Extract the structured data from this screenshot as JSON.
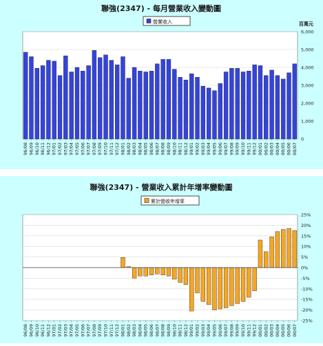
{
  "chart_data": [
    {
      "type": "bar",
      "title": "聯強(2347) - 每月營業收入變動圖",
      "unit_label": "百萬元",
      "legend": "營業收入",
      "legend_position": "top",
      "bar_color": "#3344dd",
      "y_axis_side": "right",
      "ylim": [
        0,
        6000
      ],
      "yticks": [
        0,
        1000,
        2000,
        3000,
        4000,
        5000,
        6000
      ],
      "ytick_labels": [
        "0",
        "1,000",
        "2,000",
        "3,000",
        "4,000",
        "5,000",
        "6,000"
      ],
      "categories": [
        "96/08",
        "96/09",
        "96/10",
        "96/11",
        "96/12",
        "97/01",
        "97/02",
        "97/03",
        "97/04",
        "97/05",
        "97/06",
        "97/07",
        "97/08",
        "97/09",
        "97/10",
        "97/11",
        "97/12",
        "98/01",
        "98/02",
        "98/03",
        "98/04",
        "98/05",
        "98/06",
        "98/07",
        "98/08",
        "98/09",
        "98/10",
        "98/11",
        "98/12",
        "99/01",
        "99/02",
        "99/03",
        "99/04",
        "99/05",
        "99/06",
        "99/07",
        "99/08",
        "99/09",
        "99/10",
        "99/11",
        "99/12",
        "00/01",
        "00/02",
        "00/03",
        "00/04",
        "00/05",
        "00/06",
        "00/07"
      ],
      "xtick_labels": [
        "96/08",
        "96/09",
        "96/10",
        "96/11",
        "96/12",
        "97/01",
        "97/02",
        "97/03",
        "97/04",
        "97/05",
        "97/06",
        "97/07",
        "97/08",
        "97/09",
        "97/10",
        "97/11",
        "97/12",
        "98/01",
        "98/02",
        "98/03",
        "98/04",
        "98/05",
        "98/06",
        "98/07",
        "98/08",
        "98/09",
        "98/10",
        "98/11",
        "98/12",
        "99/01",
        "99/02",
        "99/03",
        "99/04",
        "99/05",
        "99/06",
        "99/07",
        "99/08",
        "99/09",
        "99/10",
        "99/11",
        "99/12",
        "00/01",
        "00/02",
        "00/03",
        "00/04",
        "00/05",
        "00/06",
        "00/07"
      ],
      "values": [
        4850,
        4600,
        3950,
        4100,
        4400,
        4350,
        3550,
        4650,
        3750,
        4000,
        3800,
        4100,
        4950,
        4550,
        4700,
        4400,
        4150,
        4600,
        3400,
        4000,
        3800,
        3750,
        3800,
        4200,
        4450,
        4450,
        3900,
        3450,
        3300,
        3650,
        3450,
        2950,
        2850,
        2700,
        3100,
        3750,
        3950,
        3950,
        3750,
        3800,
        4150,
        4100,
        3550,
        3850,
        3550,
        3350,
        3700,
        4200
      ]
    },
    {
      "type": "bar",
      "title": "聯強(2347) - 營業收入累計年增率變動圖",
      "legend": "累計營收年增率",
      "legend_position": "top",
      "bar_color": "#f5a623",
      "y_axis_side": "right",
      "ylim": [
        -25,
        25
      ],
      "yticks": [
        -25,
        -20,
        -15,
        -10,
        -5,
        0,
        5,
        10,
        15,
        20,
        25
      ],
      "ytick_labels": [
        "-25%",
        "-20%",
        "-15%",
        "-10%",
        "-5%",
        "0%",
        "5%",
        "10%",
        "15%",
        "20%",
        "25%"
      ],
      "categories": [
        "96/08",
        "96/09",
        "96/10",
        "96/11",
        "96/12",
        "97/01",
        "97/02",
        "97/03",
        "97/04",
        "97/05",
        "97/06",
        "97/07",
        "97/08",
        "97/09",
        "97/10",
        "97/11",
        "97/12",
        "98/01",
        "98/02",
        "98/03",
        "98/04",
        "98/05",
        "98/06",
        "98/07",
        "98/08",
        "98/09",
        "98/10",
        "98/11",
        "98/12",
        "99/01",
        "99/02",
        "99/03",
        "99/04",
        "99/05",
        "99/06",
        "99/07",
        "99/08",
        "99/09",
        "99/10",
        "99/11",
        "99/12",
        "00/01",
        "00/02",
        "00/03",
        "00/04",
        "00/05",
        "00/06",
        "00/07"
      ],
      "xtick_labels": [
        "96/08",
        "96/09",
        "96/10",
        "96/11",
        "96/12",
        "97/01",
        "97/02",
        "97/03",
        "97/04",
        "97/05",
        "97/06",
        "97/07",
        "97/08",
        "97/09",
        "97/10",
        "97/11",
        "97/12",
        "98/01",
        "98/02",
        "98/03",
        "98/04",
        "98/05",
        "98/06",
        "98/07",
        "98/08",
        "98/09",
        "98/10",
        "98/11",
        "98/12",
        "99/01",
        "99/02",
        "99/03",
        "99/04",
        "99/05",
        "99/06",
        "99/07",
        "99/08",
        "99/09",
        "99/10",
        "99/11",
        "99/12",
        "00/01",
        "00/02",
        "00/03",
        "00/04",
        "00/05",
        "00/06",
        "00/07"
      ],
      "values": [
        0,
        0,
        0,
        0,
        0,
        0,
        0,
        0,
        0,
        0,
        0,
        0,
        0,
        0,
        0,
        0,
        0,
        4.8,
        0.5,
        -5,
        -4,
        -4,
        -3.5,
        -3,
        -3.5,
        -4,
        -5.5,
        -7,
        -8,
        -20.5,
        -12,
        -16,
        -17.5,
        -20,
        -19.5,
        -19,
        -18,
        -17,
        -16,
        -14,
        -11,
        13,
        7.5,
        14.5,
        17,
        18,
        18.5,
        17.5
      ]
    }
  ]
}
